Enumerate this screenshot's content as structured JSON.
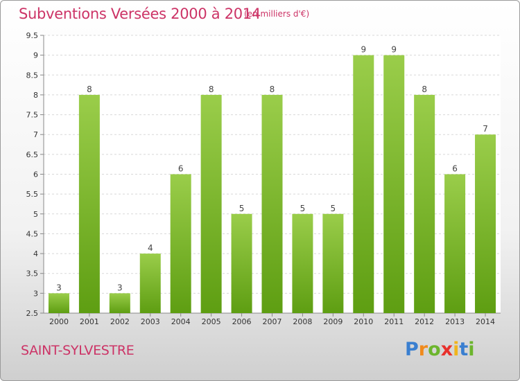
{
  "chart_data": {
    "type": "bar",
    "title": "Subventions Versées 2000 à 2014",
    "subtitle": "(en milliers d'€)",
    "categories": [
      "2000",
      "2001",
      "2002",
      "2003",
      "2004",
      "2005",
      "2006",
      "2007",
      "2008",
      "2009",
      "2010",
      "2011",
      "2012",
      "2013",
      "2014"
    ],
    "values": [
      3,
      8,
      3,
      4,
      6,
      8,
      5,
      8,
      5,
      5,
      9,
      9,
      8,
      6,
      7
    ],
    "ylim": [
      2.5,
      9.5
    ],
    "yticks": [
      "2.5",
      "3",
      "3.5",
      "4",
      "4.5",
      "5",
      "5.5",
      "6",
      "6.5",
      "7",
      "7.5",
      "8",
      "8.5",
      "9",
      "9.5"
    ],
    "grid": true,
    "bar_color_top": "#9acd4a",
    "bar_color_bottom": "#5e9e12",
    "xlabel": "",
    "ylabel": ""
  },
  "footer": {
    "place": "SAINT-SYLVESTRE",
    "brand_letters": [
      "P",
      "r",
      "o",
      "x",
      "i",
      "t",
      "i"
    ],
    "brand_colors": [
      "#3a7fd0",
      "#f08a1c",
      "#6cb52d",
      "#e8302c",
      "#f0b41c",
      "#3a7fd0",
      "#6cb52d"
    ]
  }
}
